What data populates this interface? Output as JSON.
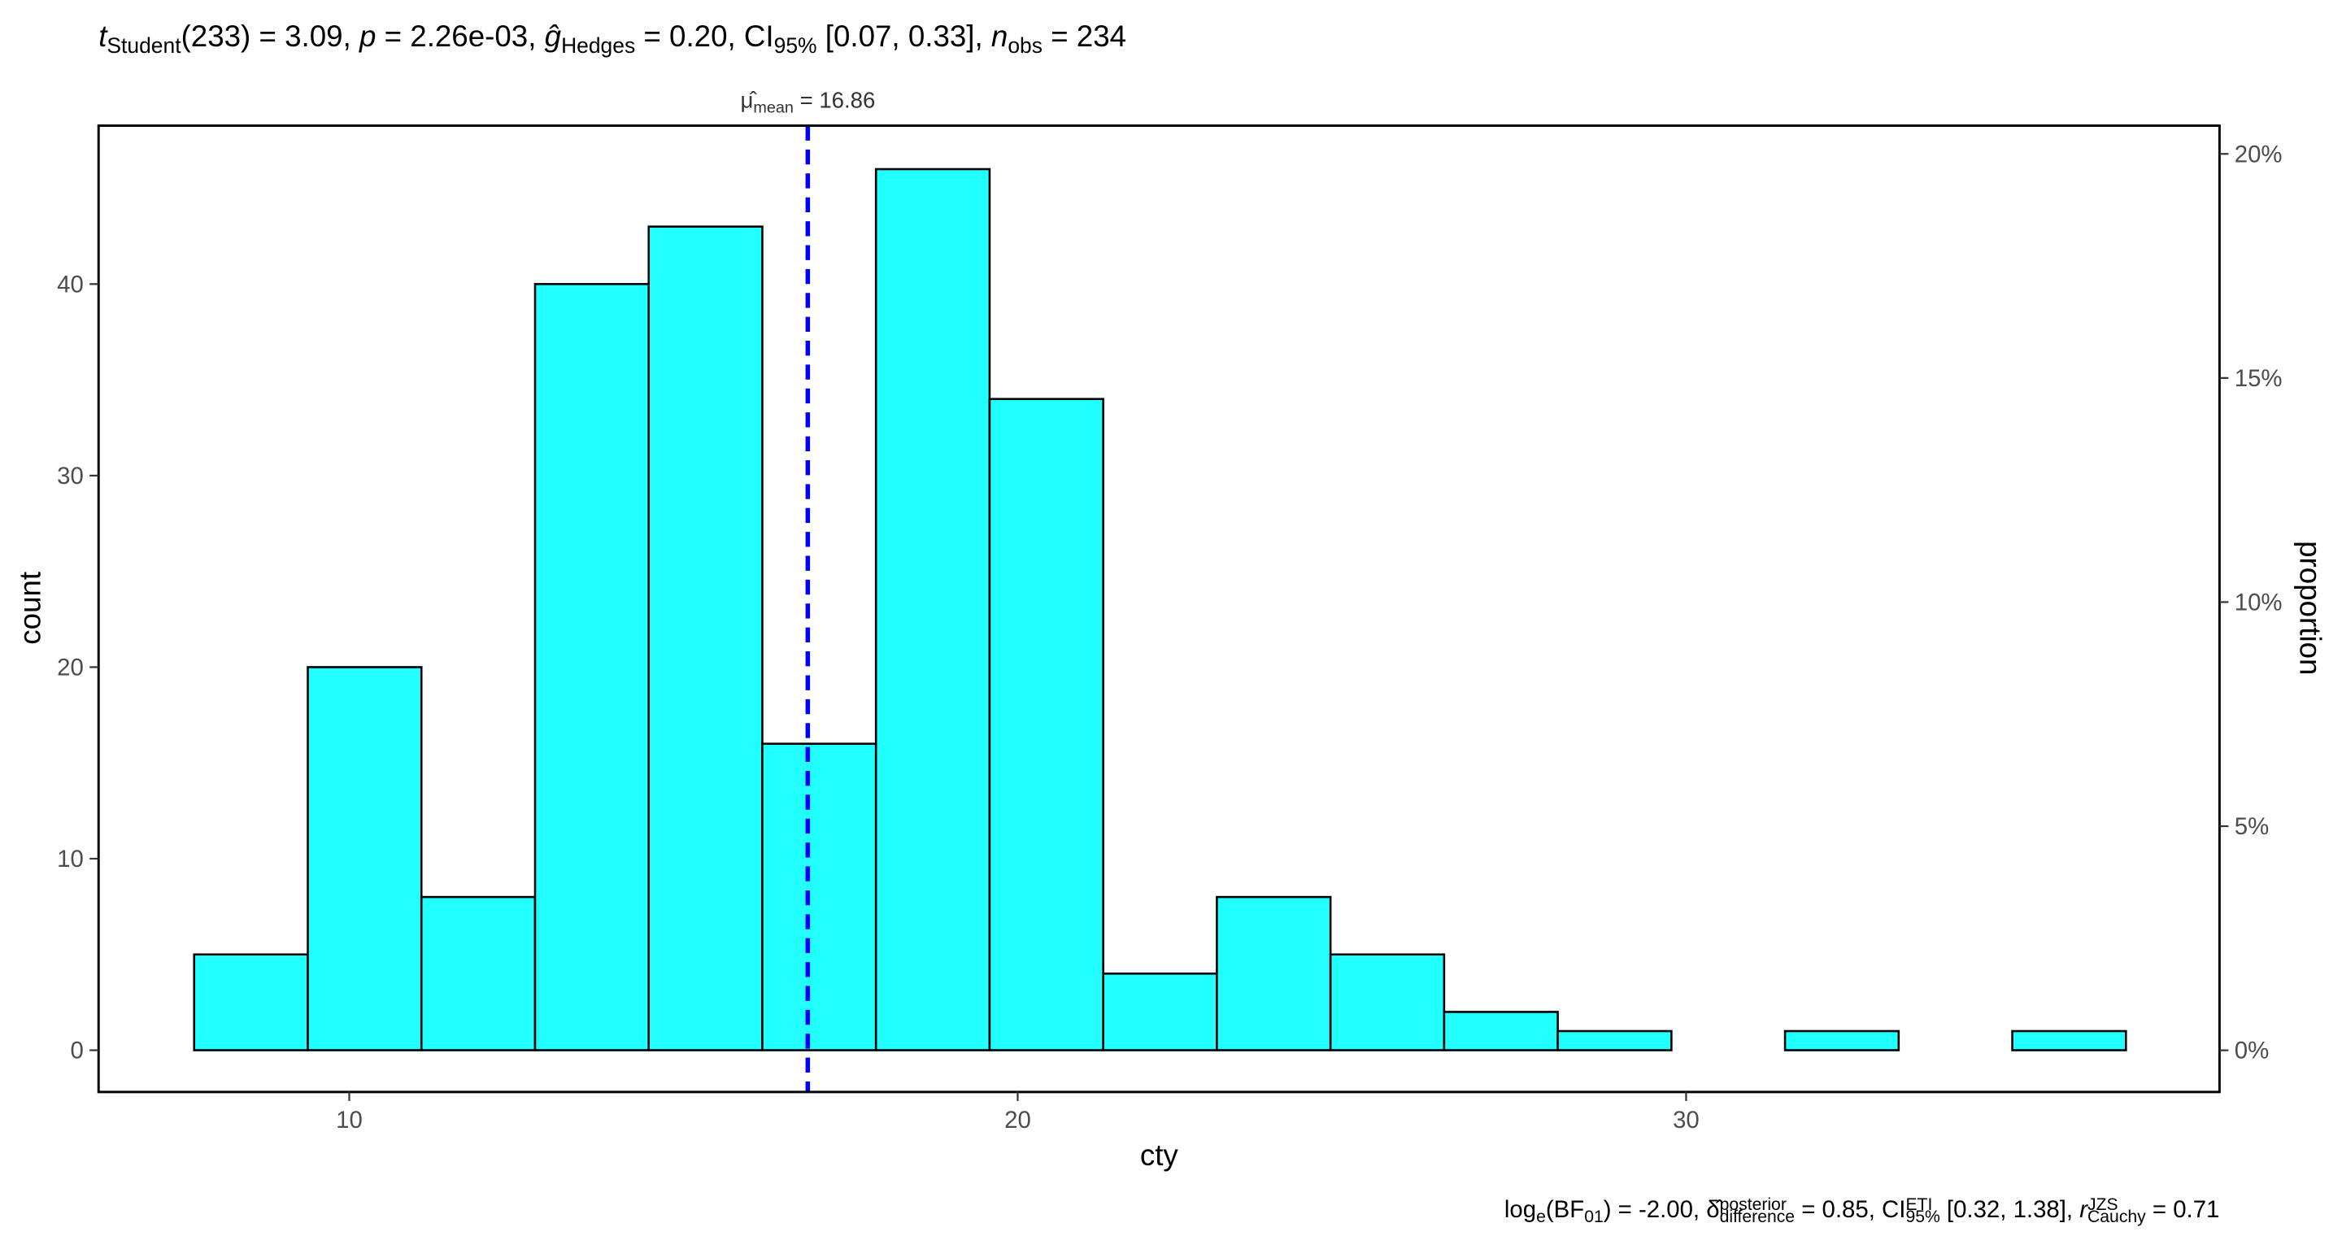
{
  "chart_data": {
    "type": "histogram",
    "subtitle_parts": [
      {
        "text": "t",
        "style": "italic"
      },
      {
        "text": "Student",
        "style": "sub"
      },
      {
        "text": "(233) = 3.09, "
      },
      {
        "text": "p",
        "style": "italic"
      },
      {
        "text": " = 2.26e-03, "
      },
      {
        "text": "ĝ",
        "style": "italic"
      },
      {
        "text": "Hedges",
        "style": "sub"
      },
      {
        "text": " = 0.20, CI"
      },
      {
        "text": "95%",
        "style": "sub"
      },
      {
        "text": " [0.07, 0.33], "
      },
      {
        "text": "n",
        "style": "italic"
      },
      {
        "text": "obs",
        "style": "sub"
      },
      {
        "text": " = 234"
      }
    ],
    "caption_parts": [
      {
        "text": "log"
      },
      {
        "text": "e",
        "style": "sub"
      },
      {
        "text": "(BF"
      },
      {
        "text": "01",
        "style": "sub"
      },
      {
        "text": ") = -2.00, "
      },
      {
        "text": "δ̂"
      },
      {
        "text": "posterior",
        "style": "sup"
      },
      {
        "text": "difference",
        "style": "sub"
      },
      {
        "text": " = 0.85, CI"
      },
      {
        "text": "ETI",
        "style": "sup"
      },
      {
        "text": "95%",
        "style": "sub"
      },
      {
        "text": " [0.32, 1.38], "
      },
      {
        "text": "r",
        "style": "italic"
      },
      {
        "text": "JZS",
        "style": "sup"
      },
      {
        "text": "Cauchy",
        "style": "sub"
      },
      {
        "text": " = 0.71"
      }
    ],
    "x_label": "cty",
    "y_label": "count",
    "y2_label": "proportion",
    "bins": [
      7.68,
      9.38,
      11.08,
      12.78,
      14.48,
      16.18,
      17.88,
      19.58,
      21.28,
      22.98,
      24.68,
      26.38,
      28.08,
      29.78,
      31.48,
      33.18,
      34.88,
      36.58
    ],
    "values": [
      5,
      20,
      8,
      40,
      43,
      16,
      46,
      34,
      4,
      8,
      5,
      2,
      1,
      0,
      1,
      0,
      1
    ],
    "color": "#22FFFF",
    "edge_color": "#000000",
    "xlim": [
      6.25,
      37.98
    ],
    "xticks": [
      10,
      20,
      30
    ],
    "ylim": [
      -2.18,
      48.27
    ],
    "yticks": [
      0,
      10,
      20,
      30,
      40
    ],
    "y2lim": [
      -0.93,
      20.63
    ],
    "y2ticks": [
      {
        "value": 0,
        "label": "0%"
      },
      {
        "value": 5,
        "label": "5%"
      },
      {
        "value": 10,
        "label": "10%"
      },
      {
        "value": 15,
        "label": "15%"
      },
      {
        "value": 20,
        "label": "20%"
      }
    ],
    "mean_line": {
      "value": 16.86,
      "color": "#0000FF",
      "label_parts": [
        {
          "text": "μ̂"
        },
        {
          "text": "mean",
          "style": "sub"
        },
        {
          "text": " = "
        }
      ]
    }
  }
}
